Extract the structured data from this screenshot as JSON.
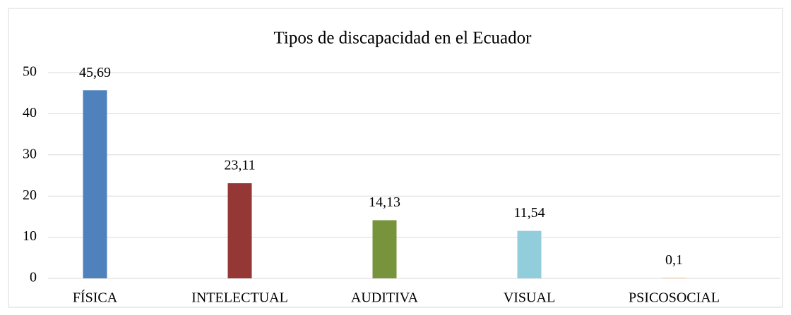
{
  "chart_data": {
    "type": "bar",
    "title": "Tipos de discapacidad en el Ecuador",
    "categories": [
      "FÍSICA",
      "INTELECTUAL",
      "AUDITIVA",
      "VISUAL",
      "PSICOSOCIAL"
    ],
    "values": [
      45.69,
      23.11,
      14.13,
      11.54,
      0.1
    ],
    "value_labels": [
      "45,69",
      "23,11",
      "14,13",
      "11,54",
      "0,1"
    ],
    "colors": [
      "#4f81bd",
      "#953735",
      "#77933c",
      "#92cddc",
      "#f79646"
    ],
    "ylim": [
      0,
      50
    ],
    "yticks": [
      0,
      10,
      20,
      30,
      40,
      50
    ],
    "grid": true
  }
}
